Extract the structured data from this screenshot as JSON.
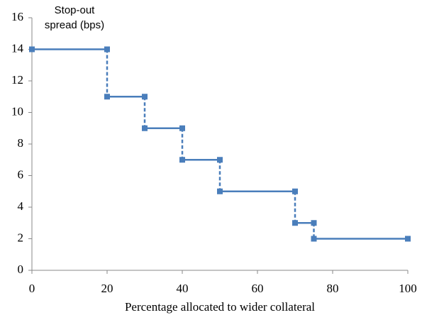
{
  "chart_data": {
    "type": "line",
    "ylabel": "Stop-out spread (bps)",
    "xlabel": "Percentage allocated to wider collateral",
    "x": [
      0,
      20,
      20,
      30,
      30,
      40,
      40,
      50,
      50,
      70,
      70,
      75,
      75,
      100
    ],
    "values": [
      14,
      14,
      11,
      11,
      9,
      9,
      7,
      7,
      5,
      5,
      3,
      3,
      2,
      2
    ],
    "color": "#4a7ebb",
    "xlim": [
      0,
      100
    ],
    "xticks": [
      0,
      20,
      40,
      60,
      80,
      100
    ],
    "ylim": [
      0,
      16
    ],
    "yticks": [
      0,
      2,
      4,
      6,
      8,
      10,
      12,
      14,
      16
    ],
    "grid": false
  }
}
